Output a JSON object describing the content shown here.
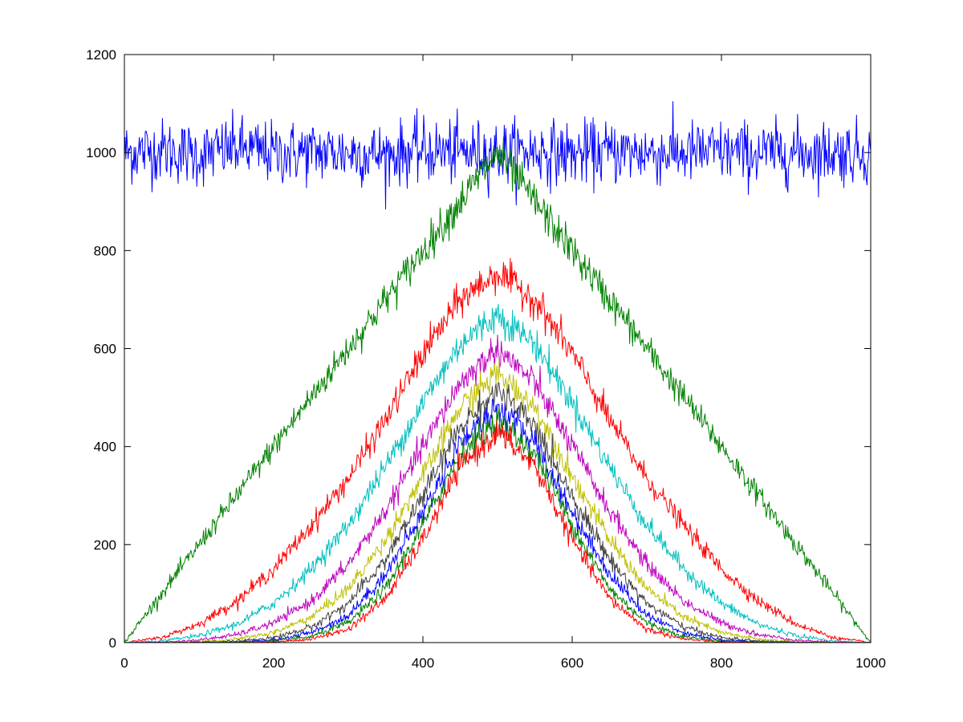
{
  "chart_data": {
    "type": "line",
    "title": "",
    "xlabel": "",
    "ylabel": "",
    "xlim": [
      0,
      1000
    ],
    "ylim": [
      0,
      1200
    ],
    "x_ticks": [
      "0",
      "200",
      "400",
      "600",
      "800",
      "1000"
    ],
    "y_ticks": [
      "0",
      "200",
      "400",
      "600",
      "800",
      "1000",
      "1200"
    ],
    "grid": false,
    "legend": "none",
    "x": [
      0,
      50,
      100,
      150,
      200,
      250,
      300,
      350,
      400,
      450,
      500,
      550,
      600,
      650,
      700,
      750,
      800,
      850,
      900,
      950,
      1000
    ],
    "series": [
      {
        "color": "#0000ff",
        "values": [
          1000,
          1005,
          995,
          1010,
          998,
          1002,
          1000,
          996,
          1004,
          1000,
          1000,
          1003,
          997,
          1001,
          1000,
          999,
          1002,
          998,
          1001,
          1000,
          1000
        ]
      },
      {
        "color": "#008000",
        "values": [
          0,
          100,
          200,
          300,
          400,
          500,
          600,
          700,
          800,
          900,
          1000,
          900,
          800,
          700,
          600,
          500,
          400,
          300,
          200,
          100,
          0
        ]
      },
      {
        "color": "#ff0000",
        "values": [
          0,
          10,
          38,
          84,
          150,
          238,
          335,
          455,
          590,
          700,
          755,
          700,
          590,
          455,
          335,
          238,
          150,
          84,
          38,
          10,
          0
        ]
      },
      {
        "color": "#00bfbf",
        "values": [
          0,
          3,
          14,
          37,
          80,
          150,
          240,
          360,
          490,
          610,
          670,
          610,
          490,
          360,
          240,
          150,
          80,
          37,
          14,
          3,
          0
        ]
      },
      {
        "color": "#bf00bf",
        "values": [
          0,
          1,
          5,
          16,
          40,
          84,
          160,
          270,
          400,
          530,
          600,
          530,
          400,
          270,
          160,
          84,
          40,
          16,
          5,
          1,
          0
        ]
      },
      {
        "color": "#bfbf00",
        "values": [
          0,
          0,
          2,
          7,
          20,
          52,
          110,
          210,
          340,
          480,
          550,
          480,
          340,
          210,
          110,
          52,
          20,
          7,
          2,
          0,
          0
        ]
      },
      {
        "color": "#404040",
        "values": [
          0,
          0,
          1,
          3,
          10,
          31,
          80,
          170,
          300,
          440,
          515,
          440,
          300,
          170,
          80,
          31,
          10,
          3,
          1,
          0,
          0
        ]
      },
      {
        "color": "#0000ff",
        "values": [
          0,
          0,
          0,
          1,
          5,
          20,
          55,
          140,
          265,
          410,
          480,
          410,
          265,
          140,
          55,
          20,
          5,
          1,
          0,
          0,
          0
        ]
      },
      {
        "color": "#008000",
        "values": [
          0,
          0,
          0,
          1,
          3,
          12,
          40,
          110,
          240,
          385,
          455,
          385,
          240,
          110,
          40,
          12,
          3,
          1,
          0,
          0,
          0
        ]
      },
      {
        "color": "#ff0000",
        "values": [
          0,
          0,
          0,
          0,
          1,
          7,
          27,
          90,
          210,
          360,
          430,
          360,
          210,
          90,
          27,
          7,
          1,
          0,
          0,
          0,
          0
        ]
      }
    ]
  }
}
